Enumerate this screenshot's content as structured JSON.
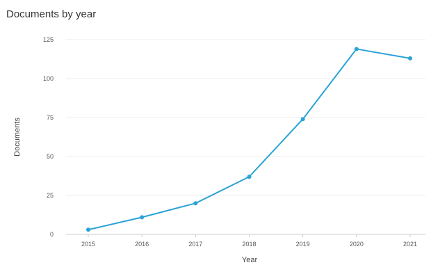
{
  "chart_data": {
    "type": "line",
    "title": "Documents by year",
    "xlabel": "Year",
    "ylabel": "Documents",
    "x": [
      "2015",
      "2016",
      "2017",
      "2018",
      "2019",
      "2020",
      "2021"
    ],
    "series": [
      {
        "values": [
          3,
          11,
          20,
          37,
          74,
          119,
          113
        ]
      }
    ],
    "ylim": [
      0,
      125
    ],
    "yticks": [
      "0",
      "25",
      "50",
      "75",
      "100",
      "125"
    ],
    "grid": true,
    "legend": "none",
    "colors": {
      "line": "#2aa3d6",
      "grid": "#eeeeee",
      "axis": "#cccccc"
    }
  }
}
